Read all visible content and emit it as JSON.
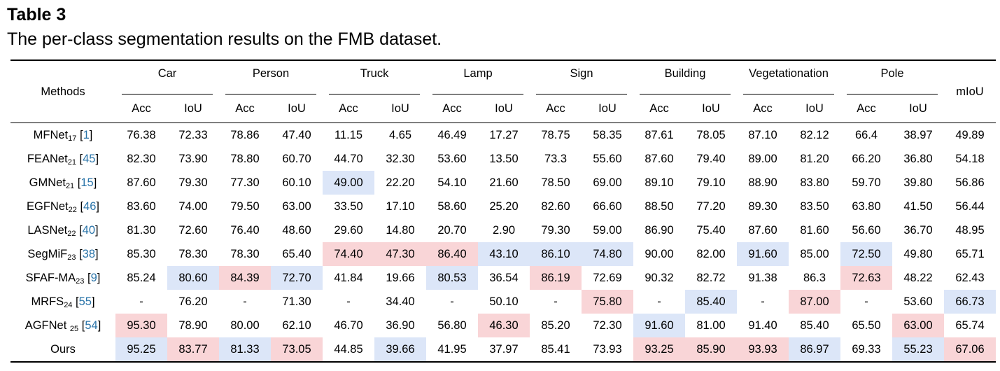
{
  "caption": {
    "title": "Table 3",
    "text": "The per-class segmentation results on the FMB dataset."
  },
  "header": {
    "methods": "Methods",
    "groups": [
      "Car",
      "Person",
      "Truck",
      "Lamp",
      "Sign",
      "Building",
      "Vegetationation",
      "Pole"
    ],
    "miou": "mIoU",
    "sub_labels": [
      "Acc",
      "IoU",
      "Acc",
      "IoU",
      "Acc",
      "IoU",
      "Acc",
      "IoU",
      "Acc",
      "IoU",
      "Acc",
      "IoU",
      "Acc",
      "IoU",
      "Acc",
      "IoU"
    ]
  },
  "colors": {
    "highlight_blue": "#dce6f8",
    "highlight_red": "#f9d5d7",
    "citation": "#2a74a9"
  },
  "rows": [
    {
      "name": "MFNet",
      "sub": "17",
      "ref": "1",
      "bold": false,
      "values": [
        "76.38",
        "72.33",
        "78.86",
        "47.40",
        "11.15",
        "4.65",
        "46.49",
        "17.27",
        "78.75",
        "58.35",
        "87.61",
        "78.05",
        "87.10",
        "82.12",
        "66.4",
        "38.97",
        "49.89"
      ],
      "hl": [
        "",
        "",
        "",
        "",
        "",
        "",
        "",
        "",
        "",
        "",
        "",
        "",
        "",
        "",
        "",
        "",
        ""
      ]
    },
    {
      "name": "FEANet",
      "sub": "21",
      "ref": "45",
      "bold": false,
      "values": [
        "82.30",
        "73.90",
        "78.80",
        "60.70",
        "44.70",
        "32.30",
        "53.60",
        "13.50",
        "73.3",
        "55.60",
        "87.60",
        "79.40",
        "89.00",
        "81.20",
        "66.20",
        "36.80",
        "54.18"
      ],
      "hl": [
        "",
        "",
        "",
        "",
        "",
        "",
        "",
        "",
        "",
        "",
        "",
        "",
        "",
        "",
        "",
        "",
        ""
      ]
    },
    {
      "name": "GMNet",
      "sub": "21",
      "ref": "15",
      "bold": false,
      "values": [
        "87.60",
        "79.30",
        "77.30",
        "60.10",
        "49.00",
        "22.20",
        "54.10",
        "21.60",
        "78.50",
        "69.00",
        "89.10",
        "79.10",
        "88.90",
        "83.80",
        "59.70",
        "39.80",
        "56.86"
      ],
      "hl": [
        "",
        "",
        "",
        "",
        "blue",
        "",
        "",
        "",
        "",
        "",
        "",
        "",
        "",
        "",
        "",
        "",
        ""
      ]
    },
    {
      "name": "EGFNet",
      "sub": "22",
      "ref": "46",
      "bold": false,
      "values": [
        "83.60",
        "74.00",
        "79.50",
        "63.00",
        "33.50",
        "17.10",
        "58.60",
        "25.20",
        "82.60",
        "66.60",
        "88.50",
        "77.20",
        "89.30",
        "83.50",
        "63.80",
        "41.50",
        "56.44"
      ],
      "hl": [
        "",
        "",
        "",
        "",
        "",
        "",
        "",
        "",
        "",
        "",
        "",
        "",
        "",
        "",
        "",
        "",
        ""
      ]
    },
    {
      "name": "LASNet",
      "sub": "22",
      "ref": "40",
      "bold": false,
      "values": [
        "81.30",
        "72.60",
        "76.40",
        "48.60",
        "29.60",
        "14.80",
        "20.70",
        "2.90",
        "79.30",
        "59.00",
        "86.90",
        "75.40",
        "87.60",
        "81.60",
        "56.60",
        "36.70",
        "48.95"
      ],
      "hl": [
        "",
        "",
        "",
        "",
        "",
        "",
        "",
        "",
        "",
        "",
        "",
        "",
        "",
        "",
        "",
        "",
        ""
      ]
    },
    {
      "name": "SegMiF",
      "sub": "23",
      "ref": "38",
      "bold": false,
      "values": [
        "85.30",
        "78.30",
        "78.30",
        "65.40",
        "74.40",
        "47.30",
        "86.40",
        "43.10",
        "86.10",
        "74.80",
        "90.00",
        "82.00",
        "91.60",
        "85.00",
        "72.50",
        "49.80",
        "65.71"
      ],
      "hl": [
        "",
        "",
        "",
        "",
        "red",
        "red",
        "red",
        "blue",
        "blue",
        "blue",
        "",
        "",
        "blue",
        "",
        "blue",
        "",
        ""
      ]
    },
    {
      "name": "SFAF-MA",
      "sub": "23",
      "ref": "9",
      "bold": false,
      "values": [
        "85.24",
        "80.60",
        "84.39",
        "72.70",
        "41.84",
        "19.66",
        "80.53",
        "36.54",
        "86.19",
        "72.69",
        "90.32",
        "82.72",
        "91.38",
        "86.3",
        "72.63",
        "48.22",
        "62.43"
      ],
      "hl": [
        "",
        "blue",
        "red",
        "blue",
        "",
        "",
        "blue",
        "",
        "red",
        "",
        "",
        "",
        "",
        "",
        "red",
        "",
        ""
      ]
    },
    {
      "name": "MRFS",
      "sub": "24",
      "ref": "55",
      "bold": false,
      "values": [
        "-",
        "76.20",
        "-",
        "71.30",
        "-",
        "34.40",
        "-",
        "50.10",
        "-",
        "75.80",
        "-",
        "85.40",
        "-",
        "87.00",
        "-",
        "53.60",
        "66.73"
      ],
      "hl": [
        "",
        "",
        "",
        "",
        "",
        "",
        "",
        "",
        "",
        "red",
        "",
        "blue",
        "",
        "red",
        "",
        "",
        "blue"
      ]
    },
    {
      "name": "AGFNet ",
      "sub": "25",
      "ref": "54",
      "bold": false,
      "values": [
        "95.30",
        "78.90",
        "80.00",
        "62.10",
        "46.70",
        "36.90",
        "56.80",
        "46.30",
        "85.20",
        "72.30",
        "91.60",
        "81.00",
        "91.40",
        "85.40",
        "65.50",
        "63.00",
        "65.74"
      ],
      "hl": [
        "red",
        "",
        "",
        "",
        "",
        "",
        "",
        "red",
        "",
        "",
        "blue",
        "",
        "",
        "",
        "",
        "red",
        ""
      ]
    },
    {
      "name": "Ours",
      "sub": "",
      "ref": "",
      "bold": true,
      "values": [
        "95.25",
        "83.77",
        "81.33",
        "73.05",
        "44.85",
        "39.66",
        "41.95",
        "37.97",
        "85.41",
        "73.93",
        "93.25",
        "85.90",
        "93.93",
        "86.97",
        "69.33",
        "55.23",
        "67.06"
      ],
      "hl": [
        "blue",
        "red",
        "blue",
        "red",
        "",
        "blue",
        "",
        "",
        "",
        "",
        "red",
        "red",
        "red",
        "blue",
        "",
        "blue",
        "red"
      ]
    }
  ]
}
